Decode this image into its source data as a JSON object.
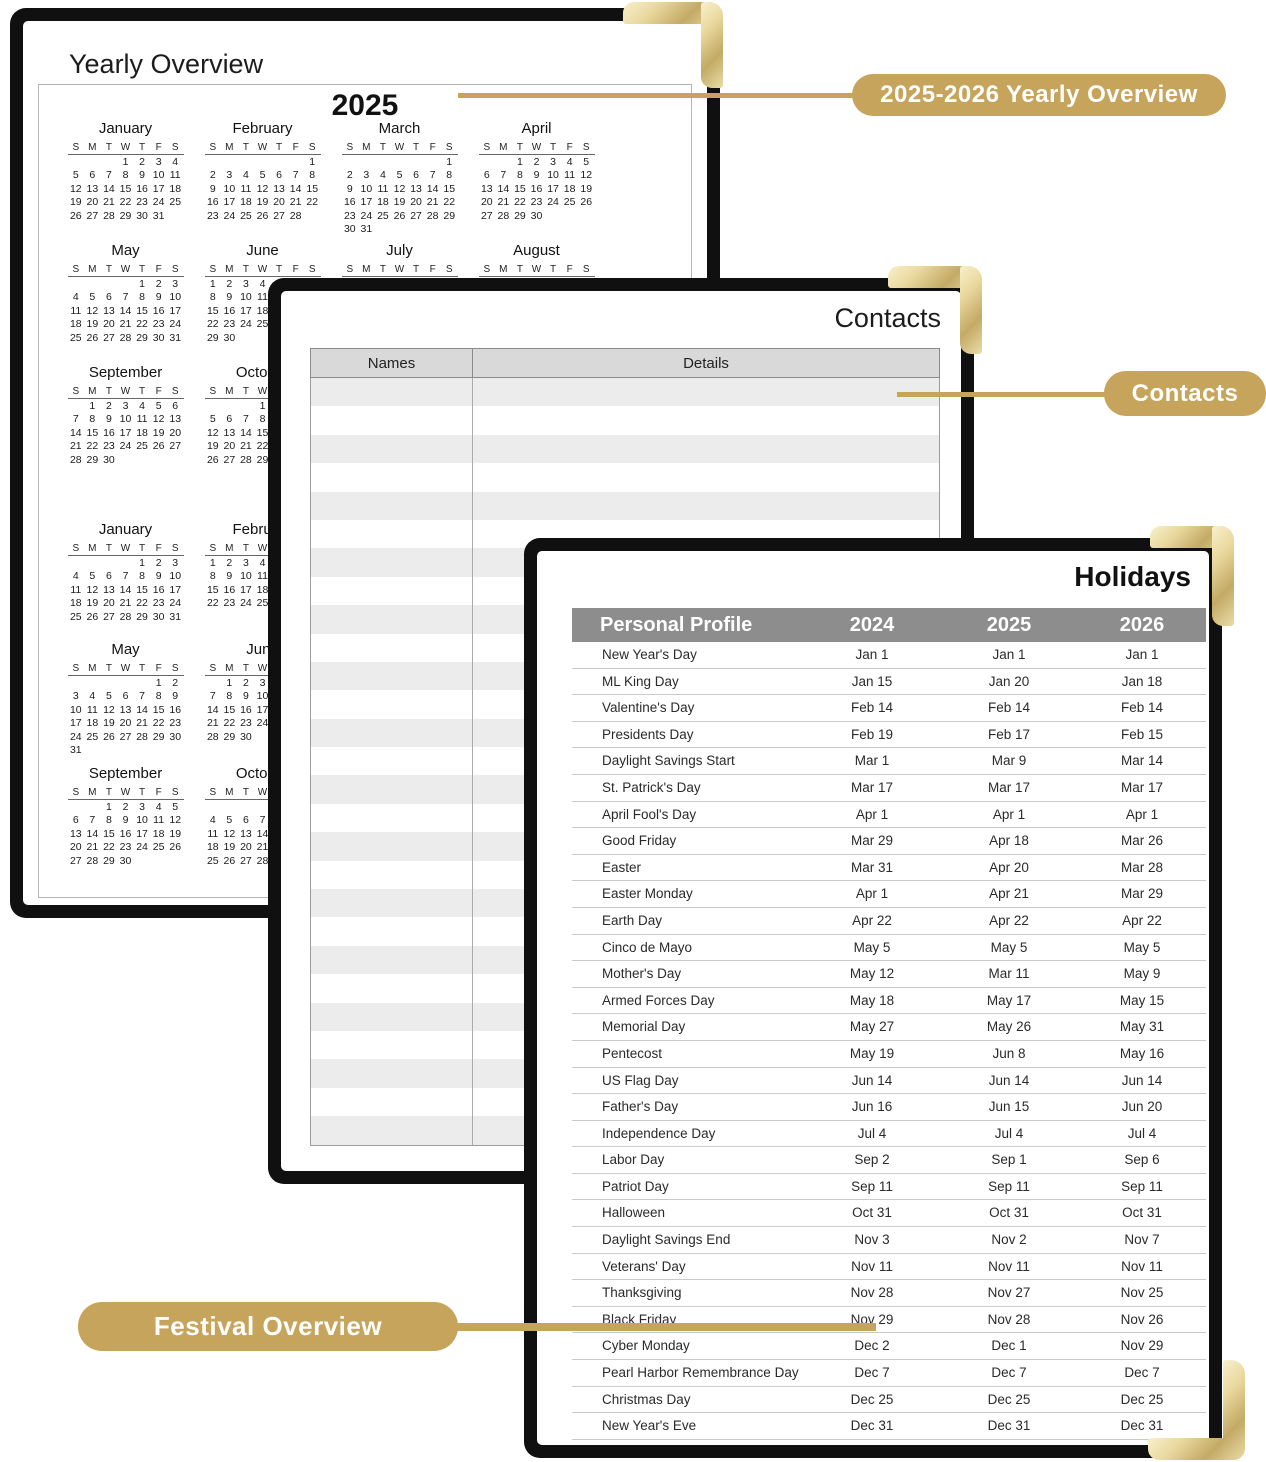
{
  "labels": {
    "yearly_overview_tag": "2025-2026 Yearly Overview",
    "contacts_tag": "Contacts",
    "festival_tag": "Festival Overview"
  },
  "colors": {
    "gold_accent": "#C7A45C",
    "holidays_header_gray": "#8D8D8D",
    "contacts_header_gray": "#D9D9D9",
    "row_stripe_gray": "#ECECEC",
    "cover_black": "#101010"
  },
  "yearly_page": {
    "title": "Yearly Overview",
    "year_title": "2025",
    "weekday_letters": [
      "S",
      "M",
      "T",
      "W",
      "T",
      "F",
      "S"
    ],
    "year_2025_rows": [
      [
        {
          "name": "January",
          "first_dow": 3,
          "days": 31
        },
        {
          "name": "February",
          "first_dow": 6,
          "days": 28
        },
        {
          "name": "March",
          "first_dow": 6,
          "days": 31
        },
        {
          "name": "April",
          "first_dow": 2,
          "days": 30
        }
      ],
      [
        {
          "name": "May",
          "first_dow": 4,
          "days": 31
        },
        {
          "name": "June",
          "first_dow": 0,
          "days": 30
        },
        {
          "name": "July",
          "first_dow": 2,
          "days": 31
        },
        {
          "name": "August",
          "first_dow": 5,
          "days": 31
        }
      ],
      [
        {
          "name": "September",
          "first_dow": 1,
          "days": 30
        },
        {
          "name": "October",
          "first_dow": 3,
          "days": 31
        }
      ]
    ],
    "year_2026_rows": [
      [
        {
          "name": "January",
          "first_dow": 4,
          "days": 31
        },
        {
          "name": "February",
          "first_dow": 0,
          "days": 28
        }
      ],
      [
        {
          "name": "May",
          "first_dow": 5,
          "days": 31
        },
        {
          "name": "June",
          "first_dow": 1,
          "days": 30
        }
      ],
      [
        {
          "name": "September",
          "first_dow": 2,
          "days": 30
        },
        {
          "name": "October",
          "first_dow": 4,
          "days": 31
        }
      ]
    ]
  },
  "contacts_page": {
    "title": "Contacts",
    "columns": [
      "Names",
      "Details"
    ],
    "empty_row_count": 27
  },
  "holidays_page": {
    "title": "Holidays",
    "header": [
      "Personal Profile",
      "2024",
      "2025",
      "2026"
    ],
    "rows": [
      [
        "New Year's Day",
        "Jan 1",
        "Jan 1",
        "Jan 1"
      ],
      [
        "ML King Day",
        "Jan 15",
        "Jan 20",
        "Jan 18"
      ],
      [
        "Valentine's Day",
        "Feb 14",
        "Feb 14",
        "Feb 14"
      ],
      [
        "Presidents Day",
        "Feb 19",
        "Feb 17",
        "Feb 15"
      ],
      [
        "Daylight Savings Start",
        "Mar 1",
        "Mar 9",
        "Mar 14"
      ],
      [
        "St. Patrick's Day",
        "Mar 17",
        "Mar 17",
        "Mar 17"
      ],
      [
        "April Fool's Day",
        "Apr 1",
        "Apr 1",
        "Apr 1"
      ],
      [
        "Good Friday",
        "Mar 29",
        "Apr 18",
        "Mar 26"
      ],
      [
        "Easter",
        "Mar 31",
        "Apr 20",
        "Mar 28"
      ],
      [
        "Easter Monday",
        "Apr 1",
        "Apr 21",
        "Mar 29"
      ],
      [
        "Earth Day",
        "Apr 22",
        "Apr 22",
        "Apr 22"
      ],
      [
        "Cinco de Mayo",
        "May 5",
        "May 5",
        "May 5"
      ],
      [
        "Mother's Day",
        "May 12",
        "Mar 11",
        "May 9"
      ],
      [
        "Armed Forces Day",
        "May 18",
        "May 17",
        "May 15"
      ],
      [
        "Memorial Day",
        "May 27",
        "May 26",
        "May 31"
      ],
      [
        "Pentecost",
        "May 19",
        "Jun 8",
        "May 16"
      ],
      [
        "US Flag Day",
        "Jun 14",
        "Jun 14",
        "Jun 14"
      ],
      [
        "Father's Day",
        "Jun 16",
        "Jun 15",
        "Jun 20"
      ],
      [
        "Independence Day",
        "Jul 4",
        "Jul 4",
        "Jul 4"
      ],
      [
        "Labor Day",
        "Sep 2",
        "Sep 1",
        "Sep 6"
      ],
      [
        "Patriot Day",
        "Sep 11",
        "Sep 11",
        "Sep 11"
      ],
      [
        "Halloween",
        "Oct 31",
        "Oct 31",
        "Oct 31"
      ],
      [
        "Daylight Savings End",
        "Nov 3",
        "Nov 2",
        "Nov 7"
      ],
      [
        "Veterans' Day",
        "Nov 11",
        "Nov 11",
        "Nov 11"
      ],
      [
        "Thanksgiving",
        "Nov 28",
        "Nov 27",
        "Nov 25"
      ],
      [
        "Black Friday",
        "Nov 29",
        "Nov 28",
        "Nov 26"
      ],
      [
        "Cyber Monday",
        "Dec 2",
        "Dec 1",
        "Nov 29"
      ],
      [
        "Pearl Harbor Remembrance Day",
        "Dec 7",
        "Dec 7",
        "Dec 7"
      ],
      [
        "Christmas Day",
        "Dec 25",
        "Dec 25",
        "Dec 25"
      ],
      [
        "New Year's Eve",
        "Dec 31",
        "Dec 31",
        "Dec 31"
      ]
    ]
  }
}
